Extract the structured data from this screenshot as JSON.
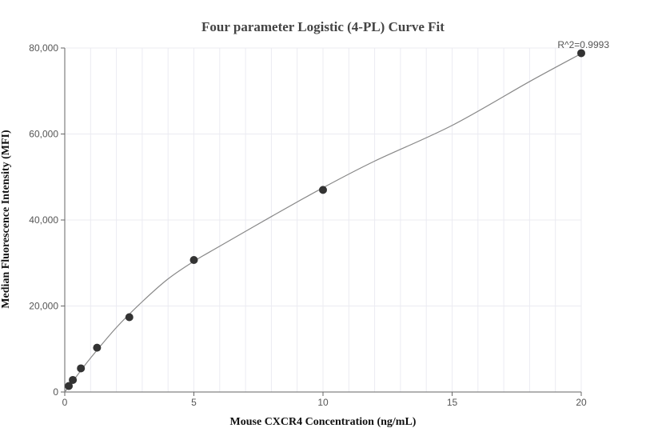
{
  "chart_data": {
    "type": "scatter",
    "title": "Four parameter Logistic (4-PL) Curve Fit",
    "xlabel": "Mouse CXCR4 Concentration (ng/mL)",
    "ylabel": "Median Fluorescence Intensity (MFI)",
    "xlim": [
      0,
      20
    ],
    "ylim": [
      0,
      80000
    ],
    "x_ticks": [
      0,
      5,
      10,
      15,
      20
    ],
    "x_tick_labels": [
      "0",
      "5",
      "10",
      "15",
      "20"
    ],
    "y_ticks": [
      0,
      20000,
      40000,
      60000,
      80000
    ],
    "y_tick_labels": [
      "0",
      "20,000",
      "40,000",
      "60,000",
      "80,000"
    ],
    "grid": true,
    "annotation": "R^2=0.9993",
    "points": [
      {
        "x": 0.156,
        "y": 1400
      },
      {
        "x": 0.3125,
        "y": 2800
      },
      {
        "x": 0.625,
        "y": 5500
      },
      {
        "x": 1.25,
        "y": 10300
      },
      {
        "x": 2.5,
        "y": 17400
      },
      {
        "x": 5,
        "y": 30700
      },
      {
        "x": 10,
        "y": 47000
      },
      {
        "x": 20,
        "y": 78800
      }
    ],
    "fit_curve": [
      {
        "x": 0,
        "y": 0
      },
      {
        "x": 0.5,
        "y": 4000
      },
      {
        "x": 1,
        "y": 7900
      },
      {
        "x": 2,
        "y": 15000
      },
      {
        "x": 3,
        "y": 21000
      },
      {
        "x": 4,
        "y": 26300
      },
      {
        "x": 5,
        "y": 30400
      },
      {
        "x": 6,
        "y": 33900
      },
      {
        "x": 8,
        "y": 40800
      },
      {
        "x": 10,
        "y": 47500
      },
      {
        "x": 12,
        "y": 53700
      },
      {
        "x": 15,
        "y": 62000
      },
      {
        "x": 18,
        "y": 72200
      },
      {
        "x": 20,
        "y": 78700
      }
    ],
    "colors": {
      "point": "#333333",
      "curve": "#888888",
      "grid": "#ebebf2",
      "axis": "#666666"
    }
  }
}
